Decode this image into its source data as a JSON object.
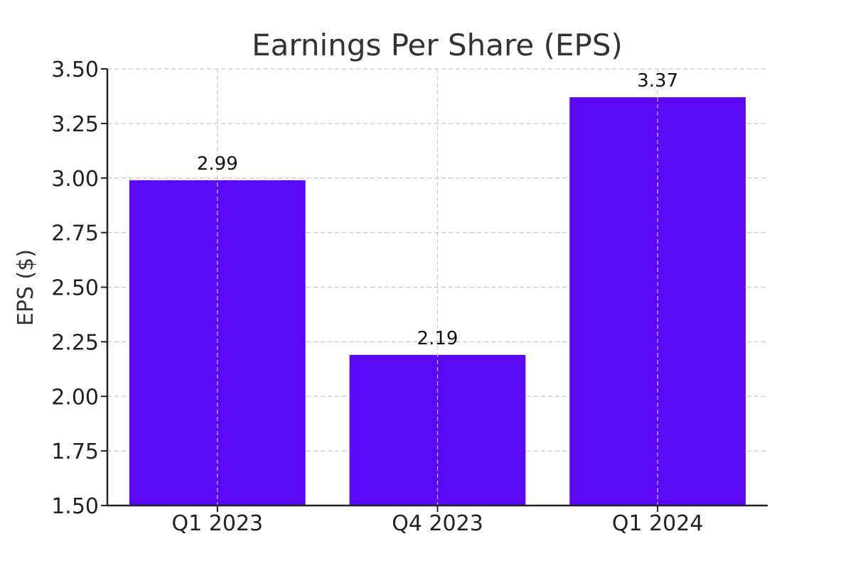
{
  "chart_data": {
    "type": "bar",
    "title": "Earnings Per Share (EPS)",
    "xlabel": "",
    "ylabel": "EPS ($)",
    "categories": [
      "Q1 2023",
      "Q4 2023",
      "Q1 2024"
    ],
    "values": [
      2.99,
      2.19,
      3.37
    ],
    "data_labels": [
      "2.99",
      "2.19",
      "3.37"
    ],
    "ylim": [
      1.5,
      3.5
    ],
    "yticks": [
      1.5,
      1.75,
      2.0,
      2.25,
      2.5,
      2.75,
      3.0,
      3.25,
      3.5
    ],
    "ytick_labels": [
      "1.50",
      "1.75",
      "2.00",
      "2.25",
      "2.50",
      "2.75",
      "3.00",
      "3.25",
      "3.50"
    ],
    "grid": true,
    "bar_color": "#5b08f5"
  }
}
